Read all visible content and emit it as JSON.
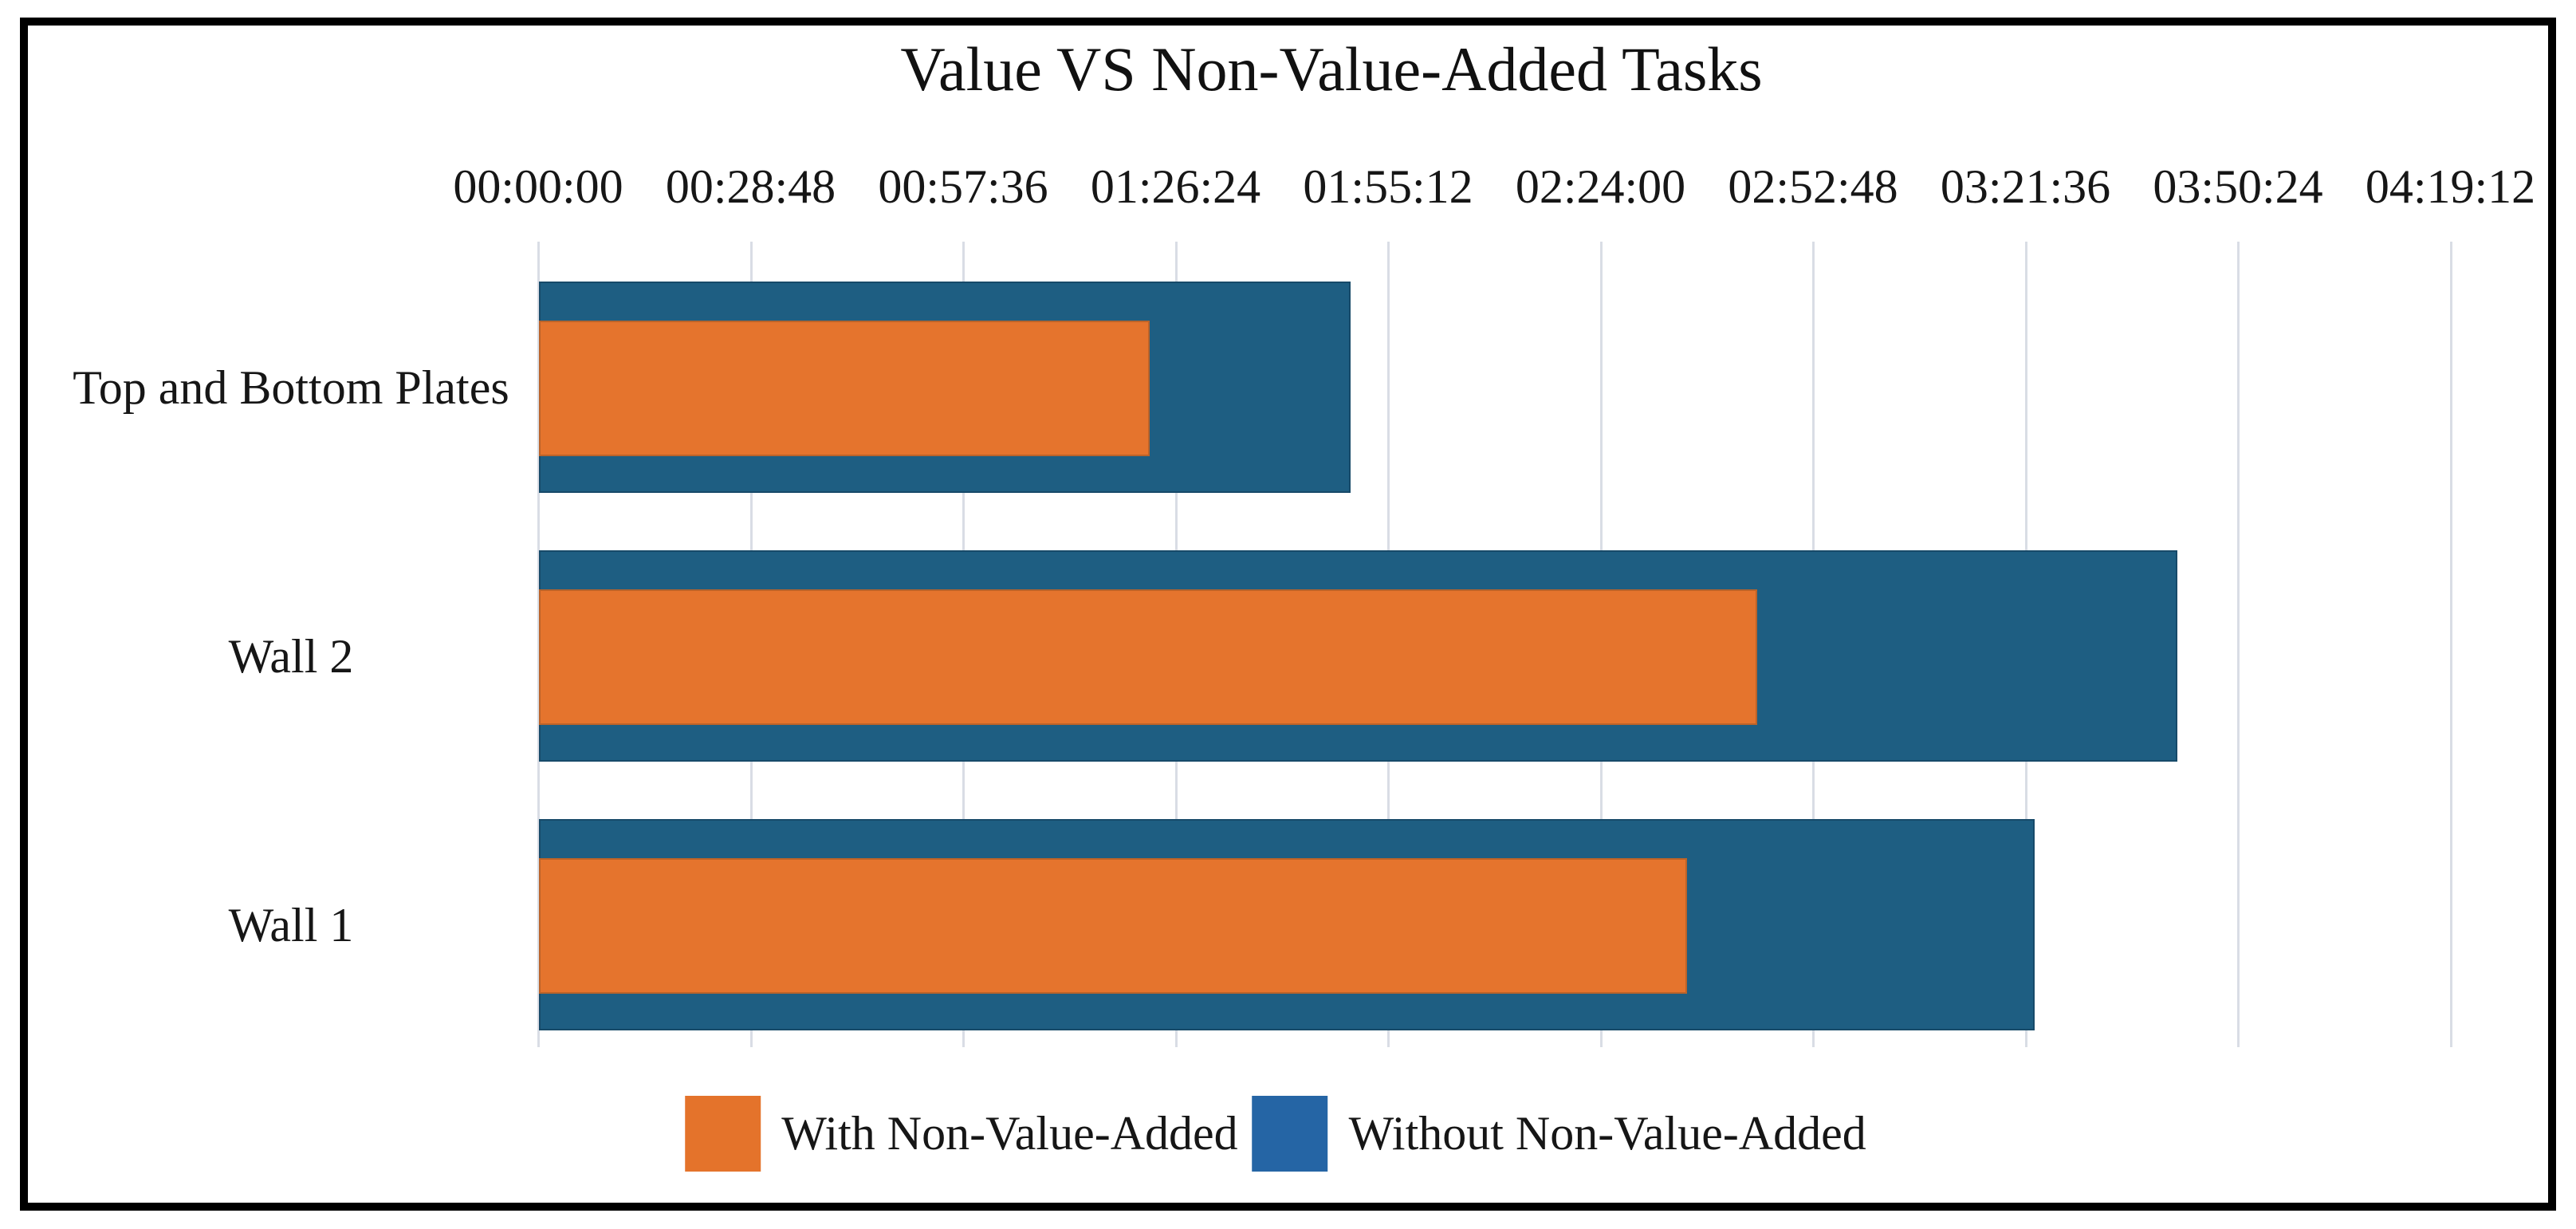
{
  "title": "Value VS Non-Value-Added Tasks",
  "legend": {
    "items": [
      {
        "label": "With Non-Value-Added",
        "color": "#E4732B"
      },
      {
        "label": "Without Non-Value-Added",
        "color": "#2565A5"
      }
    ],
    "position": "bottom-center"
  },
  "colors": {
    "bar_orange": "#E5742D",
    "bar_blue": "#1E5E82",
    "legend_blue": "#2565A5",
    "legend_orange": "#E4732B",
    "gridline": "#d9dde5",
    "frame_border": "#000000",
    "text": "#161616"
  },
  "chart_data": {
    "type": "bar",
    "orientation": "horizontal",
    "overlay": true,
    "title": "Value VS Non-Value-Added Tasks",
    "categories": [
      "Top and Bottom Plates",
      "Wall 2",
      "Wall 1"
    ],
    "series": [
      {
        "name": "With Non-Value-Added",
        "color": "#E5742D",
        "role": "front-overlay",
        "values": [
          "01:22:45",
          "02:45:10",
          "02:35:40"
        ],
        "values_seconds": [
          4965,
          9910,
          9340
        ]
      },
      {
        "name": "Without Non-Value-Added",
        "color": "#1E5E82",
        "role": "back-full",
        "values": [
          "01:50:00",
          "03:42:05",
          "03:22:45"
        ],
        "values_seconds": [
          6600,
          13325,
          12165
        ]
      }
    ],
    "x_ticks": [
      "00:00:00",
      "00:28:48",
      "00:57:36",
      "01:26:24",
      "01:55:12",
      "02:24:00",
      "02:52:48",
      "03:21:36",
      "03:50:24",
      "04:19:12"
    ],
    "x_tick_interval_seconds": 1728,
    "xlim_seconds": [
      0,
      15552
    ],
    "xlabel": "",
    "ylabel": "",
    "grid": "vertical-light",
    "legend_position": "bottom-center"
  }
}
